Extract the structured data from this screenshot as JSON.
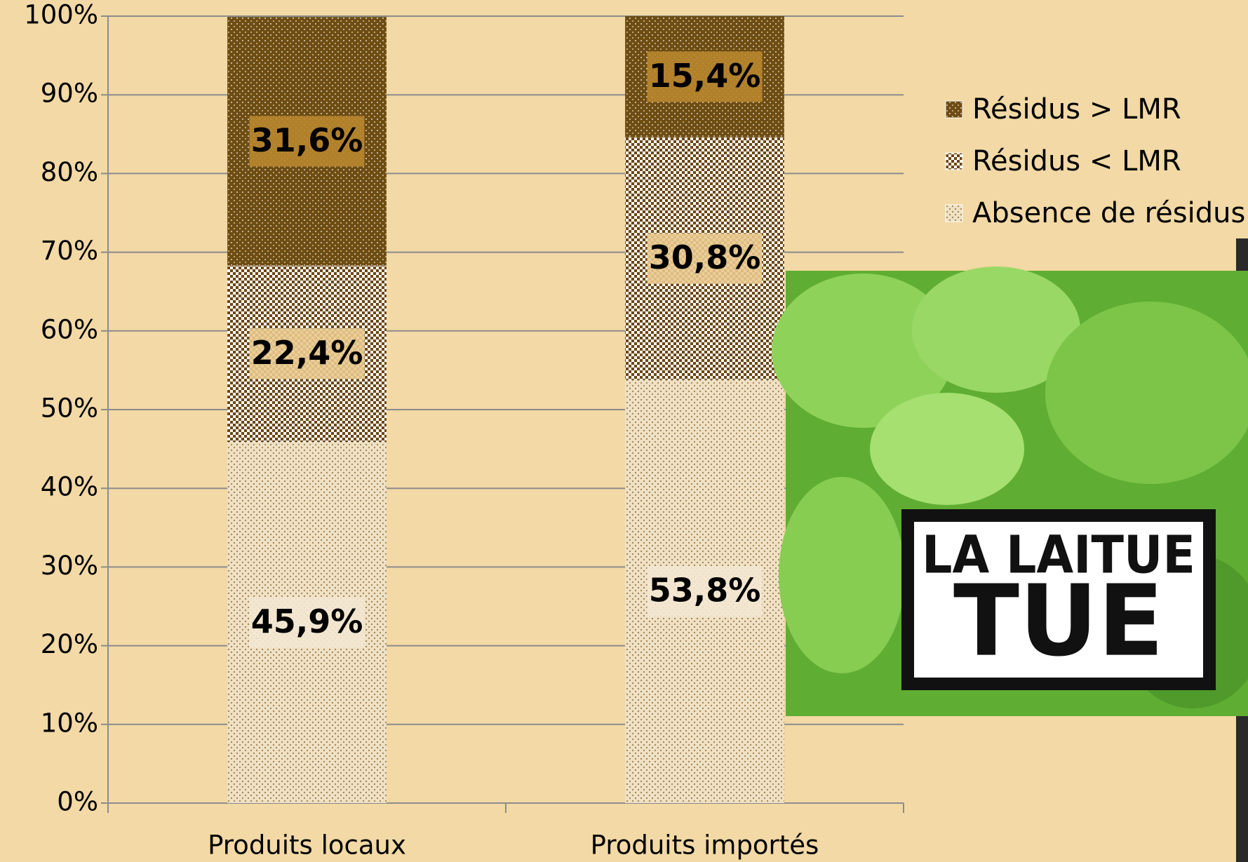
{
  "chart_data": {
    "type": "stacked_bar",
    "categories": [
      "Produits locaux",
      "Produits importés"
    ],
    "series": [
      {
        "name": "Absence de résidus",
        "color": "#a8885a",
        "values": [
          45.9,
          53.8
        ],
        "value_labels": [
          "45,9%",
          "53,8%"
        ]
      },
      {
        "name": "Résidus < LMR",
        "color": "#6b4612",
        "values": [
          22.4,
          30.8
        ],
        "value_labels": [
          "22,4%",
          "30,8%"
        ]
      },
      {
        "name": "Résidus > LMR",
        "color": "#6e4d14",
        "values": [
          31.6,
          15.4
        ],
        "value_labels": [
          "31,6%",
          "15,4%"
        ]
      }
    ],
    "ylim": [
      0,
      100
    ],
    "yticks": [
      {
        "value": 0,
        "label": "0%"
      },
      {
        "value": 10,
        "label": "10%"
      },
      {
        "value": 20,
        "label": "20%"
      },
      {
        "value": 30,
        "label": "30%"
      },
      {
        "value": 40,
        "label": "40%"
      },
      {
        "value": 50,
        "label": "50%"
      },
      {
        "value": 60,
        "label": "60%"
      },
      {
        "value": 70,
        "label": "70%"
      },
      {
        "value": 80,
        "label": "80%"
      },
      {
        "value": 90,
        "label": "90%"
      },
      {
        "value": 100,
        "label": "100%"
      }
    ],
    "grid": true,
    "legend": "right"
  },
  "overlay": {
    "lines": [
      "LA LAITUE",
      "TUE"
    ]
  }
}
